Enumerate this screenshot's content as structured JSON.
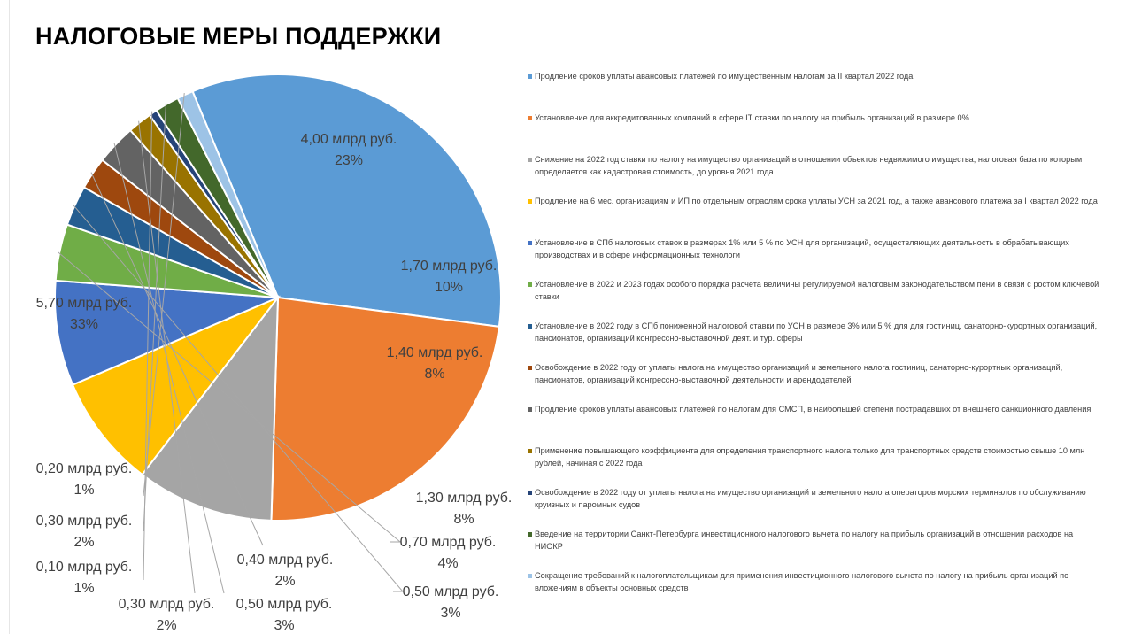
{
  "title": "НАЛОГОВЫЕ МЕРЫ ПОДДЕРЖКИ",
  "chart_data": {
    "type": "pie",
    "unit": "млрд руб.",
    "start_angle_deg": -22.5,
    "slices": [
      {
        "name": "Продление сроков уплаты авансовых платежей по имущественным налогам за II квартал 2022 года",
        "value": 5.7,
        "value_label": "5,70 млрд руб.",
        "percent_label": "33%",
        "color": "#5b9bd5"
      },
      {
        "name": "Установление для аккредитованных компаний в сфере IT ставки по налогу на прибыль организаций в размере 0%",
        "value": 4.0,
        "value_label": "4,00 млрд руб.",
        "percent_label": "23%",
        "color": "#ed7d31"
      },
      {
        "name": "Снижение на 2022 год ставки по налогу на имущество организаций в отношении объектов недвижимого имущества, налоговая база по которым определяется как кадастровая стоимость, до уровня 2021 года",
        "value": 1.7,
        "value_label": "1,70 млрд руб.",
        "percent_label": "10%",
        "color": "#a5a5a5"
      },
      {
        "name": "Продление на 6 мес. организациям и ИП по отдельным отраслям срока уплаты УСН за 2021 год, а также авансового платежа  за I квартал 2022 года",
        "value": 1.4,
        "value_label": "1,40 млрд руб.",
        "percent_label": "8%",
        "color": "#ffc000"
      },
      {
        "name": "Установление в СПб налоговых ставок в размерах 1% или 5 % по УСН для организаций, осуществляющих деятельность в обрабатывающих производствах и в сфере информационных технологи",
        "value": 1.3,
        "value_label": "1,30 млрд руб.",
        "percent_label": "8%",
        "color": "#4472c4"
      },
      {
        "name": "Установление в 2022 и 2023 годах особого порядка расчета величины регулируемой налоговым законодательством пени в связи с ростом ключевой ставки",
        "value": 0.7,
        "value_label": "0,70 млрд руб.",
        "percent_label": "4%",
        "color": "#70ad47"
      },
      {
        "name": "Установление в 2022 году в СПб пониженной налоговой ставки по УСН в размере 3% или 5 % для для гостиниц, санаторно-курортных организаций, пансионатов, организаций конгрессно-выставочной деят. и тур. сферы",
        "value": 0.5,
        "value_label": "0,50 млрд руб.",
        "percent_label": "3%",
        "color": "#255e91"
      },
      {
        "name": "Освобождение в 2022 году от уплаты налога на имущество организаций и земельного налога гостиниц, санаторно-курортных организаций, пансионатов, организаций конгрессно-выставочной деятельности и арендодателей",
        "value": 0.4,
        "value_label": "0,40 млрд руб.",
        "percent_label": "2%",
        "color": "#9e480e"
      },
      {
        "name": "Продление сроков уплаты авансовых платежей по налогам для СМСП, в наибольшей степени пострадавших от внешнего санкционного давления",
        "value": 0.5,
        "value_label": "0,50 млрд руб.",
        "percent_label": "3%",
        "color": "#636363"
      },
      {
        "name": "Применение повышающего коэффициента для определения транспортного налога только для транспортных средств стоимостью свыше 10 млн рублей, начиная с 2022 года",
        "value": 0.3,
        "value_label": "0,30 млрд руб.",
        "percent_label": "2%",
        "color": "#997300"
      },
      {
        "name": "Освобождение в 2022 году от уплаты налога на имущество организаций и земельного налога операторов морских терминалов по обслуживанию круизных и паромных судов",
        "value": 0.1,
        "value_label": "0,10 млрд руб.",
        "percent_label": "1%",
        "color": "#264478"
      },
      {
        "name": "Введение на территории Санкт-Петербурга инвестиционного налогового вычета по налогу на прибыль организаций в отношении расходов на НИОКР",
        "value": 0.3,
        "value_label": "0,30 млрд руб.",
        "percent_label": "2%",
        "color": "#43682b"
      },
      {
        "name": " Сокращение требований к налогоплательщикам для применения инвестиционного налогового вычета по налогу на прибыль организаций по вложениям в объекты основных средств",
        "value": 0.2,
        "value_label": "0,20 млрд руб.",
        "percent_label": "1%",
        "color": "#9dc3e6"
      }
    ],
    "legend_position": "right"
  }
}
